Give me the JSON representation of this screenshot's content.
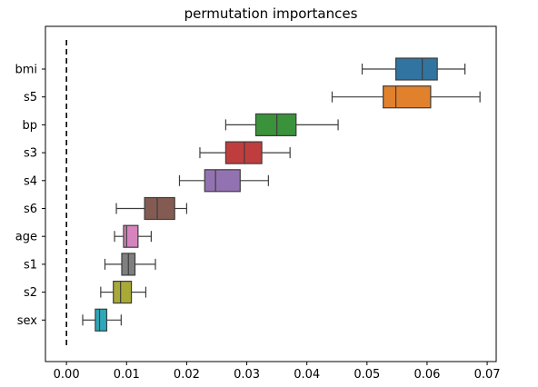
{
  "chart_data": {
    "type": "boxplot",
    "title": "permutation importances",
    "xlabel": "",
    "ylabel": "",
    "xlim": [
      -0.0035,
      0.0715
    ],
    "x_ticks": [
      0.0,
      0.01,
      0.02,
      0.03,
      0.04,
      0.05,
      0.06,
      0.07
    ],
    "x_tick_labels": [
      "0.00",
      "0.01",
      "0.02",
      "0.03",
      "0.04",
      "0.05",
      "0.06",
      "0.07"
    ],
    "orientation": "horizontal",
    "reference_line": {
      "x": 0.0,
      "style": "dashed",
      "color": "#000000"
    },
    "categories": [
      "bmi",
      "s5",
      "bp",
      "s3",
      "s4",
      "s6",
      "age",
      "s1",
      "s2",
      "sex"
    ],
    "boxes": [
      {
        "label": "bmi",
        "whisker_low": 0.0492,
        "q1": 0.0548,
        "median": 0.0592,
        "q3": 0.0617,
        "whisker_high": 0.0663,
        "color": "#3274a1"
      },
      {
        "label": "s5",
        "whisker_low": 0.0442,
        "q1": 0.0527,
        "median": 0.0548,
        "q3": 0.0606,
        "whisker_high": 0.0688,
        "color": "#e1812c"
      },
      {
        "label": "bp",
        "whisker_low": 0.0265,
        "q1": 0.0315,
        "median": 0.035,
        "q3": 0.0382,
        "whisker_high": 0.0452,
        "color": "#3a923a"
      },
      {
        "label": "s3",
        "whisker_low": 0.0222,
        "q1": 0.0265,
        "median": 0.0296,
        "q3": 0.0325,
        "whisker_high": 0.0372,
        "color": "#c03d3e"
      },
      {
        "label": "s4",
        "whisker_low": 0.0188,
        "q1": 0.023,
        "median": 0.0248,
        "q3": 0.0289,
        "whisker_high": 0.0336,
        "color": "#9372b2"
      },
      {
        "label": "s6",
        "whisker_low": 0.0083,
        "q1": 0.013,
        "median": 0.0151,
        "q3": 0.018,
        "whisker_high": 0.02,
        "color": "#845b53"
      },
      {
        "label": "age",
        "whisker_low": 0.008,
        "q1": 0.0095,
        "median": 0.01,
        "q3": 0.0119,
        "whisker_high": 0.0141,
        "color": "#d684bd"
      },
      {
        "label": "s1",
        "whisker_low": 0.0064,
        "q1": 0.0092,
        "median": 0.0103,
        "q3": 0.0114,
        "whisker_high": 0.0148,
        "color": "#7f7f7f"
      },
      {
        "label": "s2",
        "whisker_low": 0.0057,
        "q1": 0.0078,
        "median": 0.009,
        "q3": 0.0108,
        "whisker_high": 0.0132,
        "color": "#a9aa35"
      },
      {
        "label": "sex",
        "whisker_low": 0.0027,
        "q1": 0.0048,
        "median": 0.0055,
        "q3": 0.0067,
        "whisker_high": 0.0091,
        "color": "#2ea8b8"
      }
    ],
    "grid": false,
    "legend": "none"
  }
}
